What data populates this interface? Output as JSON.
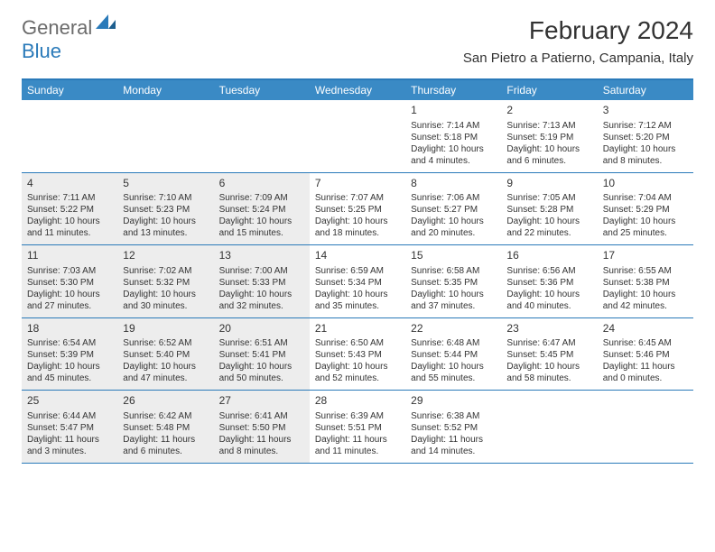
{
  "logo": {
    "general": "General",
    "blue": "Blue"
  },
  "title": "February 2024",
  "location": "San Pietro a Patierno, Campania, Italy",
  "colors": {
    "header_bg": "#3a8ac5",
    "border": "#2a7ab9",
    "shaded": "#ededed",
    "text": "#333333",
    "logo_gray": "#6b6b6b",
    "logo_blue": "#2a7ab9",
    "background": "#ffffff"
  },
  "weekdays": [
    "Sunday",
    "Monday",
    "Tuesday",
    "Wednesday",
    "Thursday",
    "Friday",
    "Saturday"
  ],
  "weeks": [
    [
      null,
      null,
      null,
      null,
      {
        "num": "1",
        "sunrise": "Sunrise: 7:14 AM",
        "sunset": "Sunset: 5:18 PM",
        "daylight1": "Daylight: 10 hours",
        "daylight2": "and 4 minutes."
      },
      {
        "num": "2",
        "sunrise": "Sunrise: 7:13 AM",
        "sunset": "Sunset: 5:19 PM",
        "daylight1": "Daylight: 10 hours",
        "daylight2": "and 6 minutes."
      },
      {
        "num": "3",
        "sunrise": "Sunrise: 7:12 AM",
        "sunset": "Sunset: 5:20 PM",
        "daylight1": "Daylight: 10 hours",
        "daylight2": "and 8 minutes."
      }
    ],
    [
      {
        "num": "4",
        "shaded": true,
        "sunrise": "Sunrise: 7:11 AM",
        "sunset": "Sunset: 5:22 PM",
        "daylight1": "Daylight: 10 hours",
        "daylight2": "and 11 minutes."
      },
      {
        "num": "5",
        "shaded": true,
        "sunrise": "Sunrise: 7:10 AM",
        "sunset": "Sunset: 5:23 PM",
        "daylight1": "Daylight: 10 hours",
        "daylight2": "and 13 minutes."
      },
      {
        "num": "6",
        "shaded": true,
        "sunrise": "Sunrise: 7:09 AM",
        "sunset": "Sunset: 5:24 PM",
        "daylight1": "Daylight: 10 hours",
        "daylight2": "and 15 minutes."
      },
      {
        "num": "7",
        "sunrise": "Sunrise: 7:07 AM",
        "sunset": "Sunset: 5:25 PM",
        "daylight1": "Daylight: 10 hours",
        "daylight2": "and 18 minutes."
      },
      {
        "num": "8",
        "sunrise": "Sunrise: 7:06 AM",
        "sunset": "Sunset: 5:27 PM",
        "daylight1": "Daylight: 10 hours",
        "daylight2": "and 20 minutes."
      },
      {
        "num": "9",
        "sunrise": "Sunrise: 7:05 AM",
        "sunset": "Sunset: 5:28 PM",
        "daylight1": "Daylight: 10 hours",
        "daylight2": "and 22 minutes."
      },
      {
        "num": "10",
        "sunrise": "Sunrise: 7:04 AM",
        "sunset": "Sunset: 5:29 PM",
        "daylight1": "Daylight: 10 hours",
        "daylight2": "and 25 minutes."
      }
    ],
    [
      {
        "num": "11",
        "shaded": true,
        "sunrise": "Sunrise: 7:03 AM",
        "sunset": "Sunset: 5:30 PM",
        "daylight1": "Daylight: 10 hours",
        "daylight2": "and 27 minutes."
      },
      {
        "num": "12",
        "shaded": true,
        "sunrise": "Sunrise: 7:02 AM",
        "sunset": "Sunset: 5:32 PM",
        "daylight1": "Daylight: 10 hours",
        "daylight2": "and 30 minutes."
      },
      {
        "num": "13",
        "shaded": true,
        "sunrise": "Sunrise: 7:00 AM",
        "sunset": "Sunset: 5:33 PM",
        "daylight1": "Daylight: 10 hours",
        "daylight2": "and 32 minutes."
      },
      {
        "num": "14",
        "sunrise": "Sunrise: 6:59 AM",
        "sunset": "Sunset: 5:34 PM",
        "daylight1": "Daylight: 10 hours",
        "daylight2": "and 35 minutes."
      },
      {
        "num": "15",
        "sunrise": "Sunrise: 6:58 AM",
        "sunset": "Sunset: 5:35 PM",
        "daylight1": "Daylight: 10 hours",
        "daylight2": "and 37 minutes."
      },
      {
        "num": "16",
        "sunrise": "Sunrise: 6:56 AM",
        "sunset": "Sunset: 5:36 PM",
        "daylight1": "Daylight: 10 hours",
        "daylight2": "and 40 minutes."
      },
      {
        "num": "17",
        "sunrise": "Sunrise: 6:55 AM",
        "sunset": "Sunset: 5:38 PM",
        "daylight1": "Daylight: 10 hours",
        "daylight2": "and 42 minutes."
      }
    ],
    [
      {
        "num": "18",
        "shaded": true,
        "sunrise": "Sunrise: 6:54 AM",
        "sunset": "Sunset: 5:39 PM",
        "daylight1": "Daylight: 10 hours",
        "daylight2": "and 45 minutes."
      },
      {
        "num": "19",
        "shaded": true,
        "sunrise": "Sunrise: 6:52 AM",
        "sunset": "Sunset: 5:40 PM",
        "daylight1": "Daylight: 10 hours",
        "daylight2": "and 47 minutes."
      },
      {
        "num": "20",
        "shaded": true,
        "sunrise": "Sunrise: 6:51 AM",
        "sunset": "Sunset: 5:41 PM",
        "daylight1": "Daylight: 10 hours",
        "daylight2": "and 50 minutes."
      },
      {
        "num": "21",
        "sunrise": "Sunrise: 6:50 AM",
        "sunset": "Sunset: 5:43 PM",
        "daylight1": "Daylight: 10 hours",
        "daylight2": "and 52 minutes."
      },
      {
        "num": "22",
        "sunrise": "Sunrise: 6:48 AM",
        "sunset": "Sunset: 5:44 PM",
        "daylight1": "Daylight: 10 hours",
        "daylight2": "and 55 minutes."
      },
      {
        "num": "23",
        "sunrise": "Sunrise: 6:47 AM",
        "sunset": "Sunset: 5:45 PM",
        "daylight1": "Daylight: 10 hours",
        "daylight2": "and 58 minutes."
      },
      {
        "num": "24",
        "sunrise": "Sunrise: 6:45 AM",
        "sunset": "Sunset: 5:46 PM",
        "daylight1": "Daylight: 11 hours",
        "daylight2": "and 0 minutes."
      }
    ],
    [
      {
        "num": "25",
        "shaded": true,
        "sunrise": "Sunrise: 6:44 AM",
        "sunset": "Sunset: 5:47 PM",
        "daylight1": "Daylight: 11 hours",
        "daylight2": "and 3 minutes."
      },
      {
        "num": "26",
        "shaded": true,
        "sunrise": "Sunrise: 6:42 AM",
        "sunset": "Sunset: 5:48 PM",
        "daylight1": "Daylight: 11 hours",
        "daylight2": "and 6 minutes."
      },
      {
        "num": "27",
        "shaded": true,
        "sunrise": "Sunrise: 6:41 AM",
        "sunset": "Sunset: 5:50 PM",
        "daylight1": "Daylight: 11 hours",
        "daylight2": "and 8 minutes."
      },
      {
        "num": "28",
        "sunrise": "Sunrise: 6:39 AM",
        "sunset": "Sunset: 5:51 PM",
        "daylight1": "Daylight: 11 hours",
        "daylight2": "and 11 minutes."
      },
      {
        "num": "29",
        "sunrise": "Sunrise: 6:38 AM",
        "sunset": "Sunset: 5:52 PM",
        "daylight1": "Daylight: 11 hours",
        "daylight2": "and 14 minutes."
      },
      null,
      null
    ]
  ]
}
